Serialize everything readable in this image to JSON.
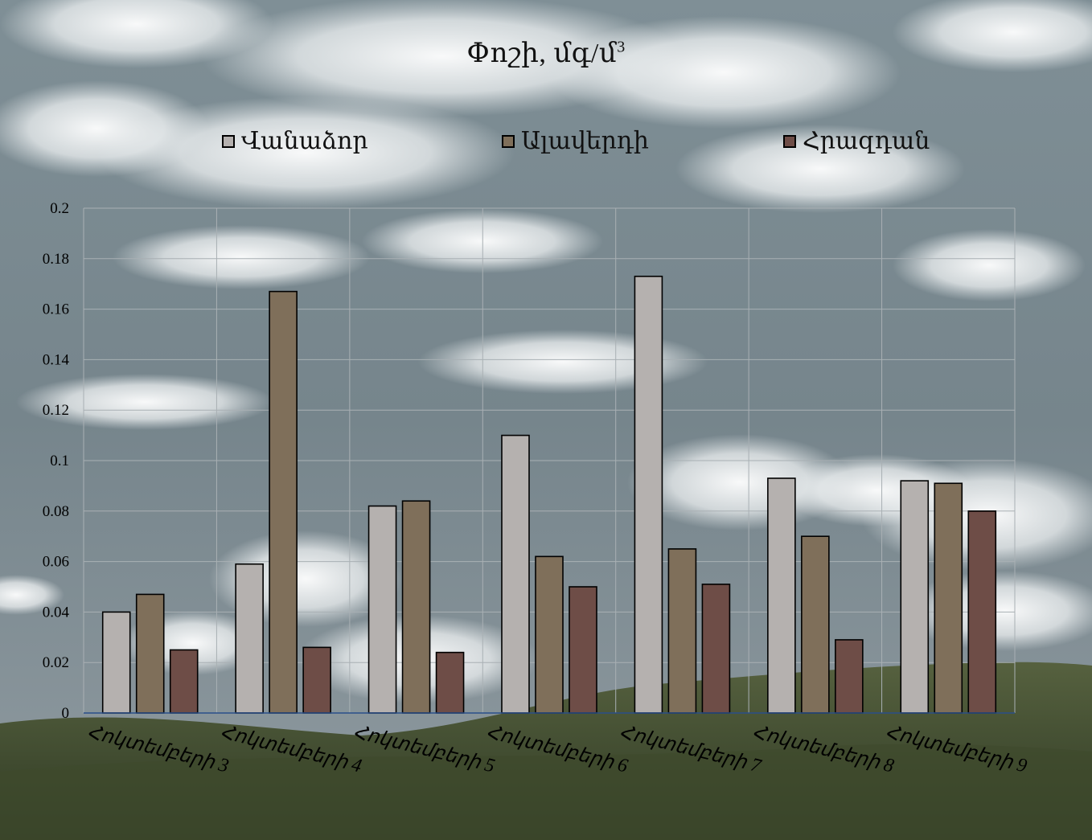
{
  "chart_data": {
    "type": "bar",
    "title": "Փոշի, մգ/մ",
    "title_sup": "3",
    "categories": [
      "Հոկտեմբերի 3",
      "Հոկտեմբերի 4",
      "Հոկտեմբերի 5",
      "Հոկտեմբերի 6",
      "Հոկտեմբերի 7",
      "Հոկտեմբերի 8",
      "Հոկտեմբերի 9"
    ],
    "series": [
      {
        "name": "Վանաձոր",
        "color": "#b5b1af",
        "values": [
          0.04,
          0.059,
          0.082,
          0.11,
          0.173,
          0.093,
          0.092
        ]
      },
      {
        "name": "Ալավերդի",
        "color": "#7f6f5a",
        "values": [
          0.047,
          0.167,
          0.084,
          0.062,
          0.065,
          0.07,
          0.091
        ]
      },
      {
        "name": "Հրազդան",
        "color": "#6e4d47",
        "values": [
          0.025,
          0.026,
          0.024,
          0.05,
          0.051,
          0.029,
          0.08
        ]
      }
    ],
    "ylim": [
      0,
      0.2
    ],
    "yticks": [
      "0",
      "0.02",
      "0.04",
      "0.06",
      "0.08",
      "0.1",
      "0.12",
      "0.14",
      "0.16",
      "0.18",
      "0.2"
    ],
    "grid": true,
    "legend": "top"
  }
}
